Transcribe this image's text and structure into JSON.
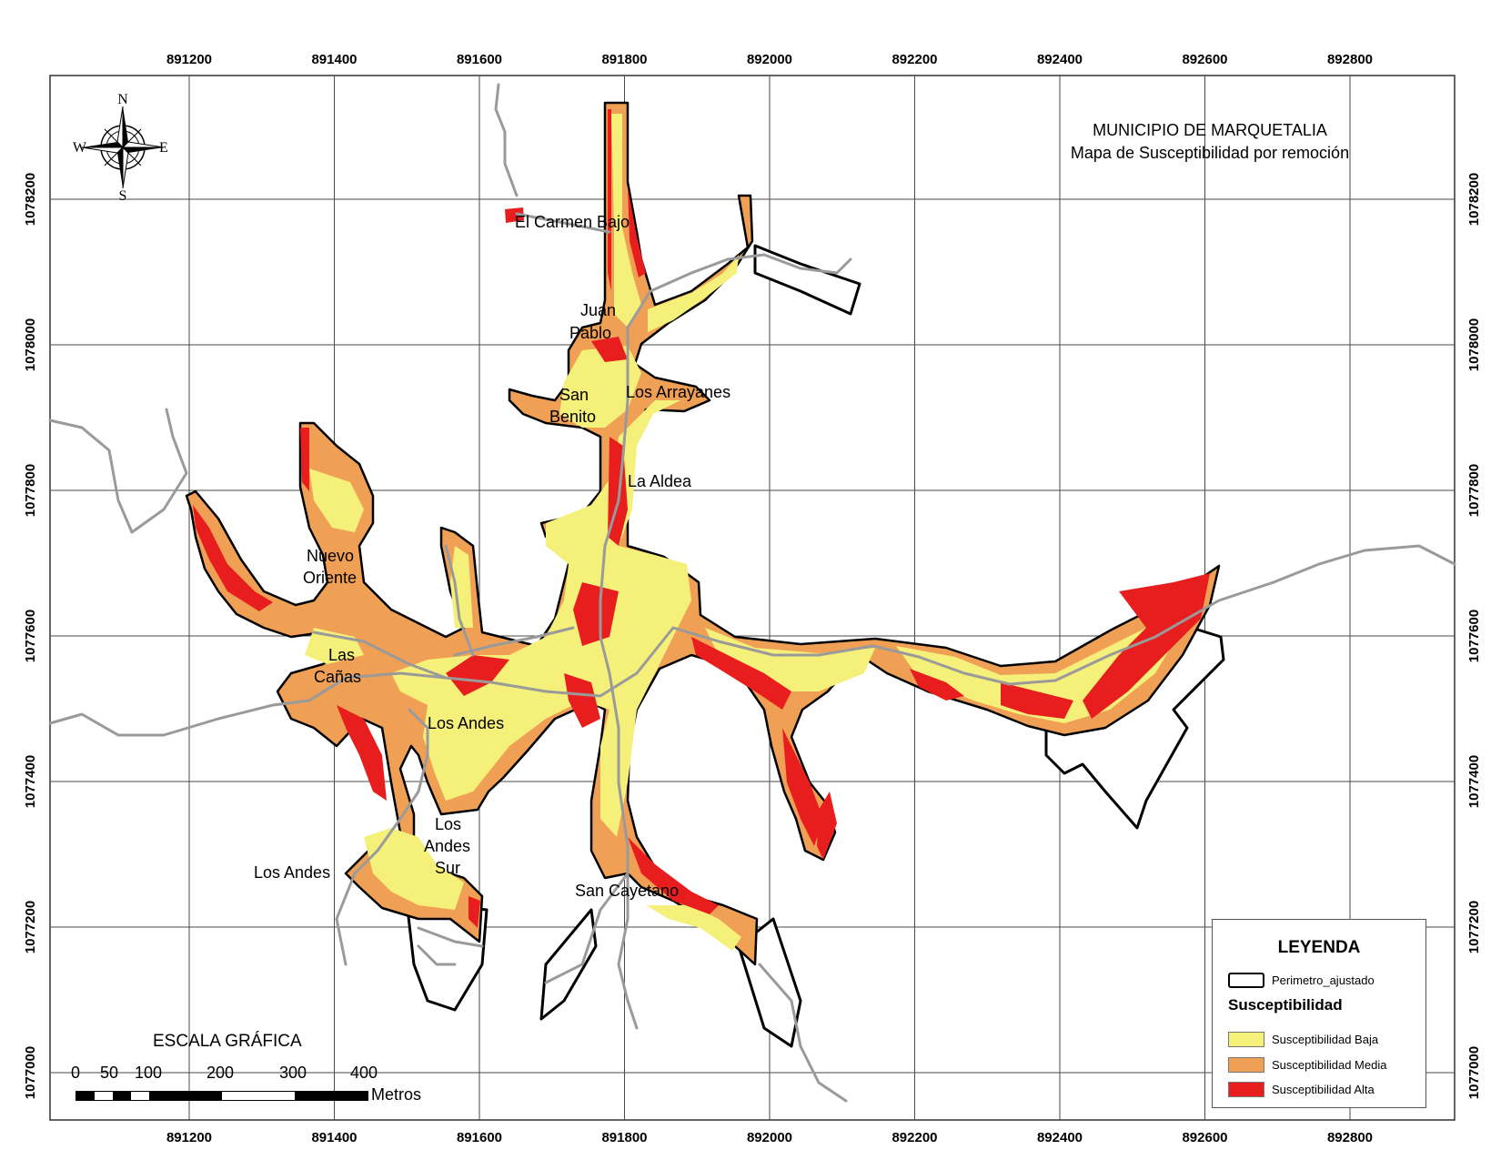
{
  "title": {
    "line1": "MUNICIPIO DE MARQUETALIA",
    "line2": "Mapa de Susceptibilidad por remoción"
  },
  "x_ticks": [
    "891200",
    "891400",
    "891600",
    "891800",
    "892000",
    "892200",
    "892400",
    "892600",
    "892800"
  ],
  "y_ticks": [
    "1078200",
    "1078000",
    "1077800",
    "1077600",
    "1077400",
    "1077200",
    "1077000"
  ],
  "compass": {
    "n": "N",
    "s": "S",
    "e": "E",
    "w": "W"
  },
  "places": [
    {
      "id": "el-carmen-bajo",
      "lines": [
        "El Carmen Bajo"
      ]
    },
    {
      "id": "juan-pablo",
      "lines": [
        "Juan",
        "Pablo"
      ]
    },
    {
      "id": "san-benito",
      "lines": [
        "San",
        "Benito"
      ]
    },
    {
      "id": "los-arrayanes",
      "lines": [
        "Los Arrayanes"
      ]
    },
    {
      "id": "la-aldea",
      "lines": [
        "La Aldea"
      ]
    },
    {
      "id": "nuevo-oriente",
      "lines": [
        "Nuevo",
        "Oriente"
      ]
    },
    {
      "id": "las-canas",
      "lines": [
        "Las",
        "Cañas"
      ]
    },
    {
      "id": "los-andes-1",
      "lines": [
        "Los Andes"
      ]
    },
    {
      "id": "los-andes-sur",
      "lines": [
        "Los",
        "Andes",
        "Sur"
      ]
    },
    {
      "id": "los-andes-2",
      "lines": [
        "Los Andes"
      ]
    },
    {
      "id": "san-cayetano",
      "lines": [
        "San Cayetano"
      ]
    }
  ],
  "legend": {
    "title": "LEYENDA",
    "perimeter_label": "Perimetro_ajustado",
    "subtitle": "Susceptibilidad",
    "items": [
      {
        "label": "Susceptibilidad Baja",
        "color": "#f4f07a"
      },
      {
        "label": "Susceptibilidad Media",
        "color": "#f0a055"
      },
      {
        "label": "Susceptibilidad Alta",
        "color": "#e81e1e"
      }
    ]
  },
  "scale": {
    "title": "ESCALA GRÁFICA",
    "labels": [
      "0",
      "50",
      "100",
      "200",
      "300",
      "400"
    ],
    "unit": "Metros"
  },
  "colors": {
    "baja": "#f4f07a",
    "media": "#f0a055",
    "alta": "#e81e1e",
    "roads": "#9a9a9a",
    "perimeter": "#000000",
    "grid": "#4a4a4a"
  }
}
